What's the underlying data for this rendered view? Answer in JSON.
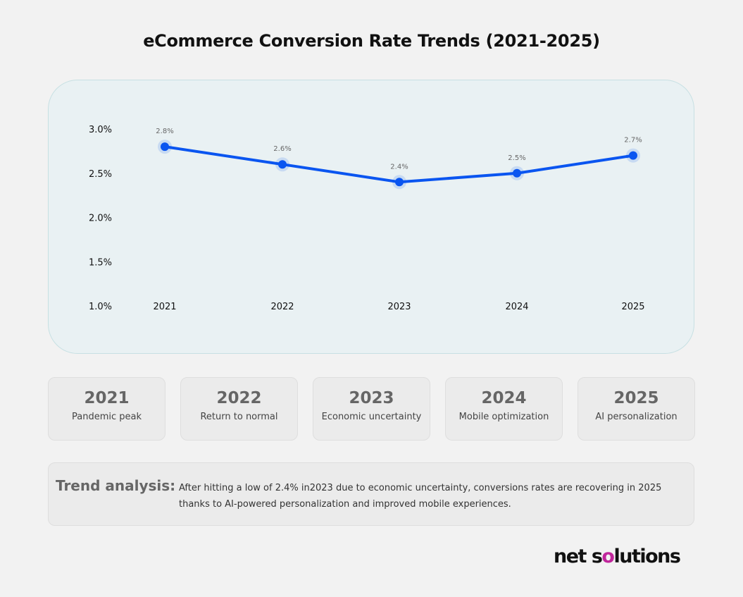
{
  "chart_data": {
    "type": "line",
    "title": "eCommerce Conversion Rate  Trends (2021-2025)",
    "categories": [
      "2021",
      "2022",
      "2023",
      "2024",
      "2025"
    ],
    "values": [
      2.8,
      2.6,
      2.4,
      2.5,
      2.7
    ],
    "data_labels": [
      "2.8%",
      "2.6%",
      "2.4%",
      "2.5%",
      "2.7%"
    ],
    "ylim": [
      1.0,
      3.0
    ],
    "yticks": [
      "1.0%",
      "1.5%",
      "2.0%",
      "2.5%",
      "3.0%"
    ],
    "ytick_values": [
      1.0,
      1.5,
      2.0,
      2.5,
      3.0
    ],
    "grid": false,
    "line_color": "#0a55f0"
  },
  "cards": [
    {
      "year": "2021",
      "desc": "Pandemic peak"
    },
    {
      "year": "2022",
      "desc": "Return to normal"
    },
    {
      "year": "2023",
      "desc": "Economic uncertainty"
    },
    {
      "year": "2024",
      "desc": "Mobile optimization"
    },
    {
      "year": "2025",
      "desc": "AI personalization"
    }
  ],
  "analysis": {
    "heading": "Trend analysis:",
    "text": "After hitting a low of 2.4% in2023 due to economic uncertainty, conversions rates are recovering in 2025 thanks to AI-powered personalization and improved mobile experiences."
  },
  "logo": {
    "text": "net solutions"
  }
}
